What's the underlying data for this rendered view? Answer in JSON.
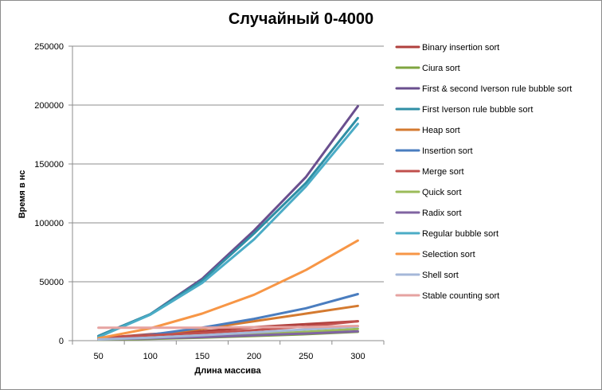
{
  "chart_data": {
    "type": "line",
    "title": "Случайный 0-4000",
    "xlabel": "Длина массива",
    "ylabel": "Время в нс",
    "x": [
      50,
      100,
      150,
      200,
      250,
      300
    ],
    "ylim": [
      0,
      250000
    ],
    "yticks": [
      "0",
      "50000",
      "100000",
      "150000",
      "200000",
      "250000"
    ],
    "xticks": [
      "50",
      "100",
      "150",
      "200",
      "250",
      "300"
    ],
    "grid": "horizontal",
    "legend_position": "right",
    "series": [
      {
        "name": "Binary insertion sort",
        "color": "#b0403d",
        "values": [
          2000,
          5500,
          8000,
          11500,
          14000,
          16500
        ]
      },
      {
        "name": "Ciura sort",
        "color": "#7fa540",
        "values": [
          800,
          1500,
          2500,
          4000,
          5500,
          7500
        ]
      },
      {
        "name": "First & second Iverson rule bubble sort",
        "color": "#6a4f8e",
        "values": [
          4000,
          22500,
          52500,
          93500,
          139000,
          199000
        ]
      },
      {
        "name": "First Iverson rule bubble sort",
        "color": "#2f8fa5",
        "values": [
          4000,
          22500,
          51000,
          91000,
          134000,
          189000
        ]
      },
      {
        "name": "Heap sort",
        "color": "#d47a30",
        "values": [
          2000,
          5000,
          10000,
          16500,
          23000,
          29500
        ]
      },
      {
        "name": "Insertion sort",
        "color": "#4a7dbf",
        "values": [
          1500,
          5000,
          11000,
          18500,
          27500,
          39500
        ]
      },
      {
        "name": "Merge sort",
        "color": "#c0504d",
        "values": [
          2500,
          4500,
          6500,
          9000,
          12000,
          16500
        ]
      },
      {
        "name": "Quick sort",
        "color": "#9bbb59",
        "values": [
          1000,
          2000,
          3500,
          5500,
          7500,
          10000
        ]
      },
      {
        "name": "Radix sort",
        "color": "#8064a2",
        "values": [
          1000,
          2000,
          3000,
          4500,
          6000,
          8000
        ]
      },
      {
        "name": "Regular bubble sort",
        "color": "#4bacc6",
        "values": [
          3000,
          22000,
          49000,
          86000,
          131000,
          184000
        ]
      },
      {
        "name": "Selection sort",
        "color": "#f79646",
        "values": [
          2000,
          10500,
          23000,
          39000,
          60000,
          85000
        ]
      },
      {
        "name": "Shell sort",
        "color": "#a5b8d9",
        "values": [
          1000,
          2500,
          4500,
          7000,
          9500,
          12000
        ]
      },
      {
        "name": "Stable counting sort",
        "color": "#e6a3a1",
        "values": [
          11000,
          11000,
          11000,
          11500,
          11500,
          12500
        ]
      }
    ]
  }
}
